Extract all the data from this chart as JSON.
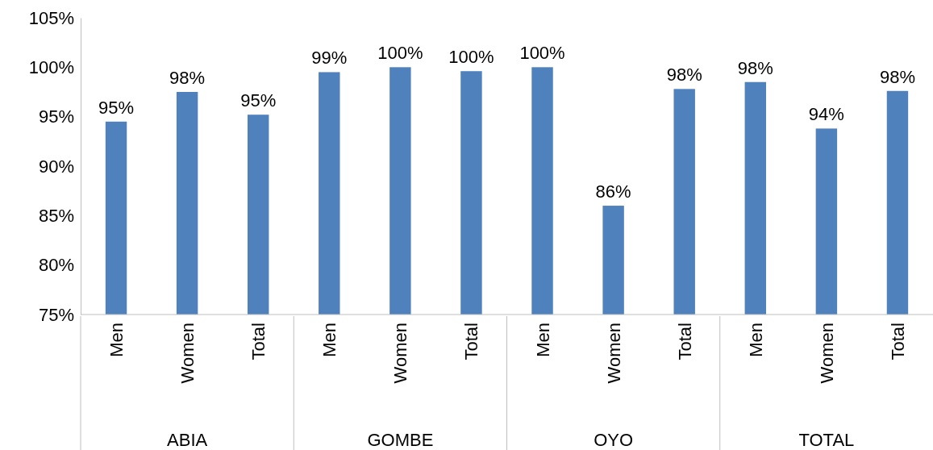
{
  "chart_data": {
    "type": "bar",
    "categories": [
      "Men",
      "Women",
      "Total",
      "Men",
      "Women",
      "Total",
      "Men",
      "Women",
      "Total",
      "Men",
      "Women",
      "Total"
    ],
    "values": [
      94.5,
      97.5,
      95.2,
      99.5,
      100,
      99.6,
      100,
      86.0,
      97.8,
      98.5,
      93.8,
      97.6
    ],
    "value_labels": [
      "95%",
      "98%",
      "95%",
      "99%",
      "100%",
      "100%",
      "100%",
      "86%",
      "98%",
      "98%",
      "94%",
      "98%"
    ],
    "color": "#4f81bd",
    "ylim": [
      75,
      105
    ],
    "yticks": [
      {
        "value": 75,
        "label": "75%"
      },
      {
        "value": 80,
        "label": "80%"
      },
      {
        "value": 85,
        "label": "85%"
      },
      {
        "value": 90,
        "label": "90%"
      },
      {
        "value": 95,
        "label": "95%"
      },
      {
        "value": 100,
        "label": "100%"
      },
      {
        "value": 105,
        "label": "105%"
      }
    ],
    "annotations": [
      "ABIA",
      "GOMBE",
      "OYO",
      "TOTAL"
    ]
  }
}
